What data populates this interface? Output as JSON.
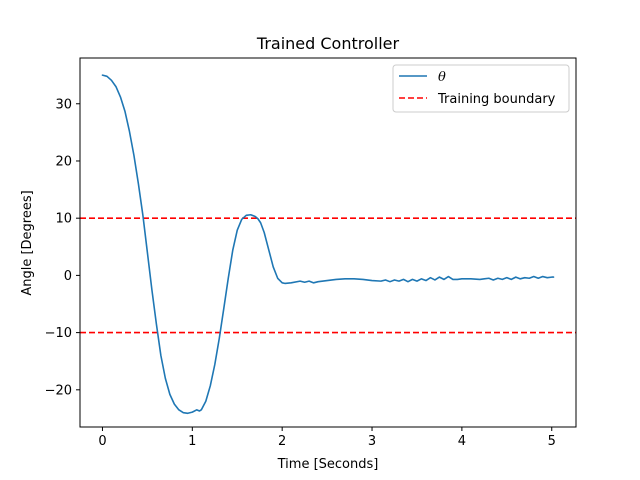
{
  "chart_data": {
    "type": "line",
    "title": "Trained Controller",
    "xlabel": "Time [Seconds]",
    "ylabel": "Angle [Degrees]",
    "xlim": [
      -0.25,
      5.27
    ],
    "ylim": [
      -26.5,
      38.0
    ],
    "xticks": [
      0,
      1,
      2,
      3,
      4,
      5
    ],
    "xtick_labels": [
      "0",
      "1",
      "2",
      "3",
      "4",
      "5"
    ],
    "yticks": [
      -20,
      -10,
      0,
      10,
      20,
      30
    ],
    "ytick_labels": [
      "−20",
      "−10",
      "0",
      "10",
      "20",
      "30"
    ],
    "grid": false,
    "legend_position": "top-right",
    "series": [
      {
        "name": "θ",
        "color": "#1f77b4",
        "style": "solid",
        "x": [
          0,
          0.05,
          0.1,
          0.15,
          0.2,
          0.25,
          0.3,
          0.35,
          0.4,
          0.45,
          0.5,
          0.55,
          0.6,
          0.65,
          0.7,
          0.75,
          0.8,
          0.85,
          0.9,
          0.95,
          1.0,
          1.05,
          1.08,
          1.1,
          1.15,
          1.2,
          1.25,
          1.3,
          1.35,
          1.4,
          1.45,
          1.5,
          1.55,
          1.6,
          1.65,
          1.7,
          1.73,
          1.76,
          1.8,
          1.85,
          1.9,
          1.95,
          2.0,
          2.03,
          2.1,
          2.2,
          2.25,
          2.3,
          2.35,
          2.4,
          2.5,
          2.6,
          2.7,
          2.8,
          2.9,
          3.0,
          3.1,
          3.15,
          3.2,
          3.25,
          3.3,
          3.35,
          3.4,
          3.45,
          3.5,
          3.55,
          3.6,
          3.65,
          3.7,
          3.75,
          3.8,
          3.85,
          3.9,
          3.95,
          4.0,
          4.1,
          4.2,
          4.25,
          4.3,
          4.35,
          4.4,
          4.45,
          4.5,
          4.55,
          4.6,
          4.65,
          4.7,
          4.75,
          4.8,
          4.85,
          4.9,
          4.95,
          5.0,
          5.02
        ],
        "y": [
          35.0,
          34.8,
          34.1,
          33.0,
          31.2,
          28.7,
          25.2,
          21.0,
          16.0,
          10.5,
          4.0,
          -2.5,
          -8.5,
          -14.0,
          -18.0,
          -20.8,
          -22.5,
          -23.5,
          -24.0,
          -24.1,
          -23.9,
          -23.5,
          -23.7,
          -23.5,
          -22.0,
          -19.3,
          -15.6,
          -11.0,
          -5.8,
          -0.5,
          4.4,
          7.9,
          9.8,
          10.5,
          10.6,
          10.3,
          9.9,
          9.2,
          7.5,
          4.5,
          1.5,
          -0.5,
          -1.3,
          -1.4,
          -1.3,
          -1.0,
          -1.2,
          -1.0,
          -1.3,
          -1.1,
          -0.9,
          -0.7,
          -0.6,
          -0.6,
          -0.7,
          -0.9,
          -1.0,
          -0.8,
          -1.1,
          -0.8,
          -1.0,
          -0.7,
          -1.1,
          -0.7,
          -1.0,
          -0.6,
          -0.9,
          -0.4,
          -0.8,
          -0.3,
          -0.7,
          -0.2,
          -0.7,
          -0.7,
          -0.6,
          -0.6,
          -0.7,
          -0.6,
          -0.5,
          -0.8,
          -0.5,
          -0.7,
          -0.4,
          -0.7,
          -0.3,
          -0.6,
          -0.4,
          -0.5,
          -0.2,
          -0.5,
          -0.2,
          -0.4,
          -0.3,
          -0.3
        ]
      },
      {
        "name": "Training boundary",
        "color": "#ff0000",
        "style": "dashed",
        "y_constant": 10
      },
      {
        "name": "Training boundary",
        "color": "#ff0000",
        "style": "dashed",
        "y_constant": -10
      }
    ],
    "legend": [
      {
        "label": "θ",
        "color": "#1f77b4",
        "style": "solid"
      },
      {
        "label": "Training boundary",
        "color": "#ff0000",
        "style": "dashed"
      }
    ]
  }
}
